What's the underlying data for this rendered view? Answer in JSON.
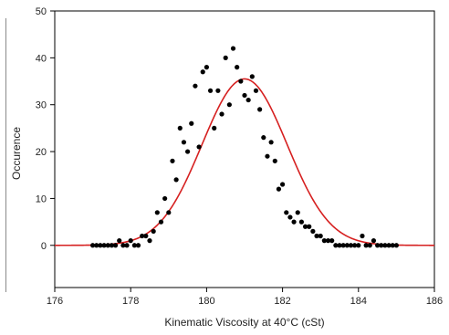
{
  "chart_data": {
    "type": "scatter",
    "title": "",
    "xlabel": "Kinematic Viscosity at 40°C (cSt)",
    "ylabel": "Occurence",
    "xlim": [
      176,
      186
    ],
    "ylim": [
      -9,
      50
    ],
    "xticks": [
      "176",
      "178",
      "180",
      "182",
      "184",
      "186"
    ],
    "yticks": [
      "0",
      "10",
      "20",
      "30",
      "40",
      "50"
    ],
    "grid": false,
    "legend": "none",
    "colors": {
      "points": "#000000",
      "fit": "#d62020",
      "axis": "#000000"
    },
    "series": [
      {
        "kind": "points",
        "x": [
          177.0,
          177.1,
          177.2,
          177.3,
          177.4,
          177.5,
          177.6,
          177.7,
          177.8,
          177.9,
          178.0,
          178.1,
          178.2,
          178.3,
          178.4,
          178.5,
          178.6,
          178.7,
          178.8,
          178.9,
          179.0,
          179.1,
          179.2,
          179.3,
          179.4,
          179.5,
          179.6,
          179.7,
          179.8,
          179.9,
          180.0,
          180.1,
          180.2,
          180.3,
          180.4,
          180.5,
          180.6,
          180.7,
          180.8,
          180.9,
          181.0,
          181.1,
          181.2,
          181.3,
          181.4,
          181.5,
          181.6,
          181.7,
          181.8,
          181.9,
          182.0,
          182.1,
          182.2,
          182.3,
          182.4,
          182.5,
          182.6,
          182.7,
          182.8,
          182.9,
          183.0,
          183.1,
          183.2,
          183.3,
          183.4,
          183.5,
          183.6,
          183.7,
          183.8,
          183.9,
          184.0,
          184.1,
          184.2,
          184.3,
          184.4,
          184.5,
          184.6,
          184.7,
          184.8,
          184.9,
          185.0
        ],
        "y": [
          0,
          0,
          0,
          0,
          0,
          0,
          0,
          1,
          0,
          0,
          1,
          0,
          0,
          2,
          2,
          1,
          3,
          7,
          5,
          10,
          7,
          18,
          14,
          25,
          22,
          20,
          26,
          34,
          21,
          37,
          38,
          33,
          25,
          33,
          28,
          40,
          30,
          42,
          38,
          35,
          32,
          31,
          36,
          33,
          29,
          23,
          19,
          22,
          18,
          12,
          13,
          7,
          6,
          5,
          7,
          5,
          4,
          4,
          3,
          2,
          2,
          1,
          1,
          1,
          0,
          0,
          0,
          0,
          0,
          0,
          0,
          2,
          0,
          0,
          1,
          0,
          0,
          0,
          0,
          0,
          0
        ]
      },
      {
        "kind": "fit",
        "model": "gaussian",
        "peak": 35.5,
        "center": 181.0,
        "sigma": 1.12
      }
    ]
  }
}
